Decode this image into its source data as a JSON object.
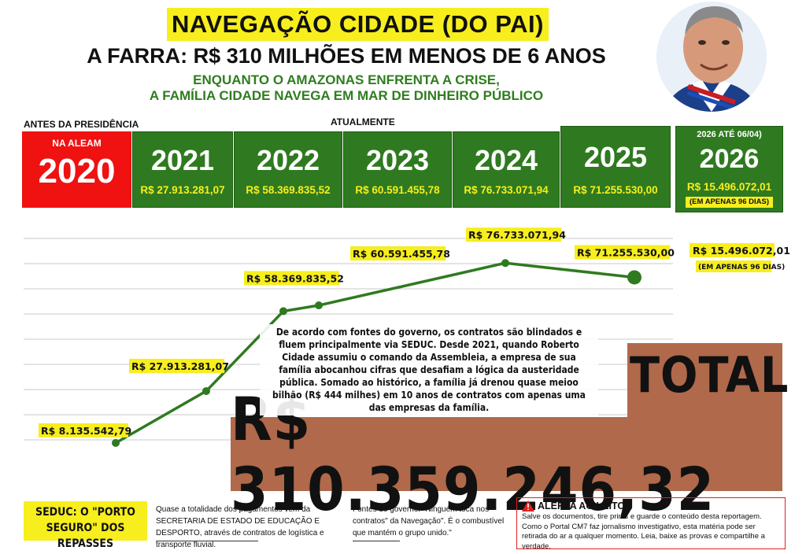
{
  "header": {
    "title": "NAVEGAÇÃO CIDADE (DO PAI)",
    "headline": "A FARRA: R$ 310 MILHÕES EM MENOS DE 6 ANOS",
    "subhead_line1": "ENQUANTO O AMAZONAS ENFRENTA A CRISE,",
    "subhead_line2": "A FAMÍLIA CIDADE NAVEGA EM MAR DE DINHEIRO PÚBLICO"
  },
  "labels": {
    "before": "ANTES DA PRESIDÊNCIA",
    "now": "ATUALMENTE",
    "box_2020_tag": "NA ALEAM",
    "box_2026_tag": "2026  ATÉ 06/04)",
    "box_2026_note": "(EM APENAS 96 DIAS)"
  },
  "years": [
    {
      "year": "2020",
      "amount": ""
    },
    {
      "year": "2021",
      "amount": "R$ 27.913.281,07"
    },
    {
      "year": "2022",
      "amount": "R$ 58.369.835,52"
    },
    {
      "year": "2023",
      "amount": "R$ 60.591.455,78"
    },
    {
      "year": "2024",
      "amount": "R$ 76.733.071,94"
    },
    {
      "year": "2025",
      "amount": "R$ 71.255.530,00"
    },
    {
      "year": "2026",
      "amount": "R$ 15.496.072,01"
    }
  ],
  "chart_data": {
    "type": "line",
    "title": "",
    "xlabel": "",
    "ylabel": "",
    "categories": [
      "2020",
      "2021",
      "2022",
      "2023",
      "2024",
      "2025"
    ],
    "values": [
      8135542.79,
      27913281.07,
      58369835.52,
      60591455.78,
      76733071.94,
      71255530.0
    ],
    "data_labels": [
      "R$ 8.135.542,79",
      "R$ 27.913.281,07",
      "R$ 58.369.835,52",
      "R$ 60.591.455,78",
      "R$ 76.733.071,94",
      "R$ 71.255.530,00"
    ],
    "side_label": "R$ 15.496.072,01",
    "side_note": "(EM APENAS 96 DIAS)",
    "grid": true,
    "line_color": "#2f7a20",
    "label_bg": "#f7ee1d"
  },
  "total": {
    "label": "TOTAL",
    "value": "R$ 310.359.246,32"
  },
  "body_text": "De acordo com fontes do governo, os contratos são blindados e fluem principalmente via SEDUC. Desde 2021, quando Roberto Cidade assumiu o comando da Assembleia, a empresa de sua família abocanhou cifras que desafiam a lógica da austeridade pública. Somado ao histórico, a família já drenou quase meioo bilhão (R$ 444 milhes) em 10 anos de contratos com apenas uma das empresas da família.",
  "footer": {
    "seduc_title": "SEDUC: O \"PORTO SEGURO\" DOS REPASSES",
    "seduc_text": "Quase a totalidade dos pagamentos vem da SECRETARIA DE ESTADO DE EDUCAÇÃO E DESPORTO, através de contratos de logística e transporte fluvial.",
    "fontes_text": "Fontes do governo: \"Ninguém toca nos contratos\" da Navegação\". É o combustível que mantém o grupo unido.\"",
    "alert_title": "ALERTA AO LEITOR",
    "alert_text": "Salve os documentos, tire prints e guarde o conteúdo desta reportagem. Como o Portal CM7 faz jornalismo investigativo, esta matéria pode ser retirada do ar a qualquer momento. Leia, baixe as provas e compartilhe a verdade."
  },
  "colors": {
    "yellow": "#f7ee1d",
    "green": "#2f7a20",
    "red": "#f01111",
    "total_bg": "#b0694a"
  }
}
